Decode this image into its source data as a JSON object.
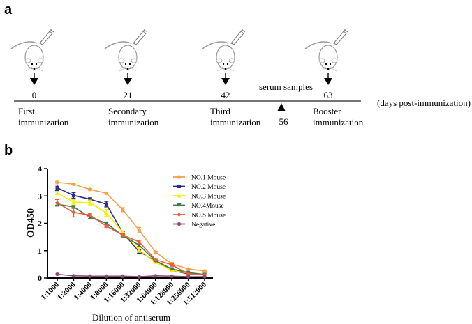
{
  "panel_a": {
    "label": "a",
    "timeline": [
      {
        "day": "0",
        "label_line1": "First",
        "label_line2": "immunization"
      },
      {
        "day": "21",
        "label_line1": "Secondary",
        "label_line2": "immunization"
      },
      {
        "day": "42",
        "label_line1": "Third",
        "label_line2": "immunization"
      },
      {
        "day": "63",
        "label_line1": "Booster",
        "label_line2": "immunization"
      }
    ],
    "serum_label": "serum samples",
    "serum_day": "56",
    "axis_unit": "(days post-immunization)"
  },
  "panel_b": {
    "label": "b"
  },
  "chart_data": {
    "type": "line",
    "title": "",
    "xlabel": "Dilution of antiserum",
    "ylabel": "OD450",
    "ylim": [
      0,
      4
    ],
    "yticks": [
      "0",
      "1",
      "2",
      "3",
      "4"
    ],
    "grid": false,
    "legend_position": "top-right",
    "categories": [
      "1:1000",
      "1:2000",
      "1:4000",
      "1:8000",
      "1:16000",
      "1:32000",
      "1:64000",
      "1:128000",
      "1:256000",
      "1:512000"
    ],
    "series": [
      {
        "name": "NO.1 Mouse",
        "color": "#f5a04a",
        "marker": "circle",
        "values": [
          3.5,
          3.43,
          3.24,
          3.1,
          2.5,
          1.75,
          0.95,
          0.52,
          0.33,
          0.26
        ],
        "errors": [
          0.03,
          0.03,
          0.03,
          0.03,
          0.07,
          0.1,
          0.03,
          0.05,
          0.03,
          0.03
        ]
      },
      {
        "name": "NO.2 Mouse",
        "color": "#2e2a8c",
        "marker": "square",
        "values": [
          3.3,
          3.02,
          2.88,
          2.7,
          1.65,
          0.97,
          0.62,
          0.28,
          0.15,
          0.12
        ],
        "errors": [
          0.1,
          0.1,
          0.05,
          0.1,
          0.06,
          0.06,
          0.03,
          0.03,
          0.02,
          0.02
        ]
      },
      {
        "name": "NO.3 Mouse",
        "color": "#f5f000",
        "marker": "triangle-up",
        "values": [
          3.1,
          2.78,
          2.75,
          2.38,
          1.68,
          1.02,
          0.58,
          0.28,
          0.18,
          0.12
        ],
        "errors": [
          0.05,
          0.08,
          0.1,
          0.12,
          0.05,
          0.08,
          0.04,
          0.03,
          0.02,
          0.02
        ]
      },
      {
        "name": "NO.4Mouse",
        "color": "#3a7a45",
        "marker": "triangle-down",
        "values": [
          2.7,
          2.6,
          2.22,
          2.0,
          1.55,
          1.2,
          0.63,
          0.33,
          0.2,
          0.13
        ],
        "errors": [
          0.04,
          0.05,
          0.05,
          0.05,
          0.05,
          0.05,
          0.03,
          0.03,
          0.02,
          0.02
        ]
      },
      {
        "name": "NO.5 Mouse",
        "color": "#ee5a3c",
        "marker": "diamond",
        "values": [
          2.75,
          2.4,
          2.3,
          1.9,
          1.57,
          1.32,
          0.67,
          0.48,
          0.15,
          0.12
        ],
        "errors": [
          0.12,
          0.17,
          0.05,
          0.04,
          0.05,
          0.06,
          0.04,
          0.05,
          0.02,
          0.02
        ]
      },
      {
        "name": "Negative",
        "color": "#8c4a78",
        "marker": "circle",
        "values": [
          0.14,
          0.08,
          0.07,
          0.07,
          0.07,
          0.05,
          0.08,
          0.07,
          0.05,
          0.05
        ],
        "errors": [
          0.01,
          0.01,
          0.01,
          0.01,
          0.01,
          0.01,
          0.01,
          0.01,
          0.01,
          0.01
        ]
      }
    ]
  }
}
